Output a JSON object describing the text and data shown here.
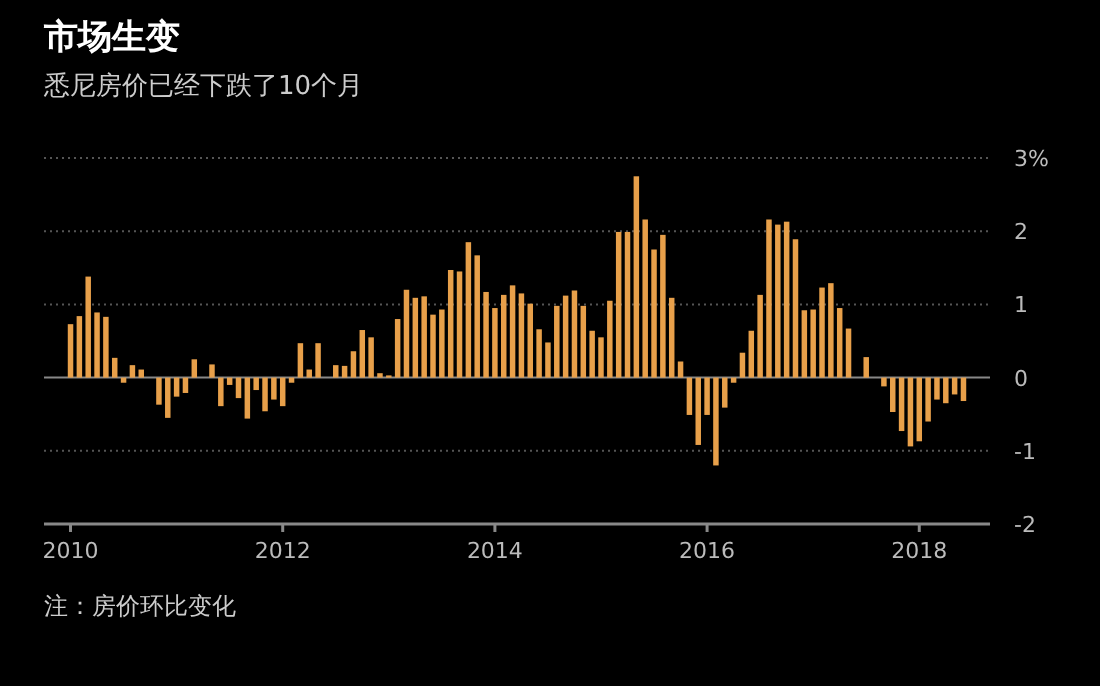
{
  "chart_data": {
    "type": "bar",
    "title": "市场生变",
    "subtitle": "悉尼房价已经下跌了10个月",
    "annotations": [
      "注：房价环比变化"
    ],
    "x": [
      "2010-01",
      "2010-02",
      "2010-03",
      "2010-04",
      "2010-05",
      "2010-06",
      "2010-07",
      "2010-08",
      "2010-09",
      "2010-10",
      "2010-11",
      "2010-12",
      "2011-01",
      "2011-02",
      "2011-03",
      "2011-04",
      "2011-05",
      "2011-06",
      "2011-07",
      "2011-08",
      "2011-09",
      "2011-10",
      "2011-11",
      "2011-12",
      "2012-01",
      "2012-02",
      "2012-03",
      "2012-04",
      "2012-05",
      "2012-06",
      "2012-07",
      "2012-08",
      "2012-09",
      "2012-10",
      "2012-11",
      "2012-12",
      "2013-01",
      "2013-02",
      "2013-03",
      "2013-04",
      "2013-05",
      "2013-06",
      "2013-07",
      "2013-08",
      "2013-09",
      "2013-10",
      "2013-11",
      "2013-12",
      "2014-01",
      "2014-02",
      "2014-03",
      "2014-04",
      "2014-05",
      "2014-06",
      "2014-07",
      "2014-08",
      "2014-09",
      "2014-10",
      "2014-11",
      "2014-12",
      "2015-01",
      "2015-02",
      "2015-03",
      "2015-04",
      "2015-05",
      "2015-06",
      "2015-07",
      "2015-08",
      "2015-09",
      "2015-10",
      "2015-11",
      "2015-12",
      "2016-01",
      "2016-02",
      "2016-03",
      "2016-04",
      "2016-05",
      "2016-06",
      "2016-07",
      "2016-08",
      "2016-09",
      "2016-10",
      "2016-11",
      "2016-12",
      "2017-01",
      "2017-02",
      "2017-03",
      "2017-04",
      "2017-05",
      "2017-06",
      "2017-07",
      "2017-08",
      "2017-09",
      "2017-10",
      "2017-11",
      "2017-12",
      "2018-01",
      "2018-02",
      "2018-03",
      "2018-04",
      "2018-05",
      "2018-06"
    ],
    "values": [
      0.73,
      0.84,
      1.38,
      0.89,
      0.83,
      0.27,
      -0.07,
      0.17,
      0.11,
      0.0,
      -0.37,
      -0.55,
      -0.26,
      -0.21,
      0.25,
      0.0,
      0.18,
      -0.39,
      -0.1,
      -0.28,
      -0.56,
      -0.17,
      -0.46,
      -0.3,
      -0.39,
      -0.07,
      0.47,
      0.11,
      0.47,
      0.0,
      0.17,
      0.16,
      0.36,
      0.65,
      0.55,
      0.06,
      0.03,
      0.8,
      1.2,
      1.09,
      1.11,
      0.86,
      0.93,
      1.47,
      1.45,
      1.85,
      1.67,
      1.17,
      0.95,
      1.13,
      1.26,
      1.15,
      1.01,
      0.66,
      0.48,
      0.98,
      1.12,
      1.19,
      0.98,
      0.64,
      0.55,
      1.05,
      1.99,
      1.99,
      2.75,
      2.16,
      1.75,
      1.95,
      1.09,
      0.22,
      -0.51,
      -0.92,
      -0.51,
      -1.2,
      -0.41,
      -0.07,
      0.34,
      0.64,
      1.13,
      2.16,
      2.09,
      2.13,
      1.89,
      0.92,
      0.93,
      1.23,
      1.29,
      0.95,
      0.67,
      0.0,
      0.28,
      0.0,
      -0.12,
      -0.47,
      -0.73,
      -0.94,
      -0.87,
      -0.6,
      -0.3,
      -0.35,
      -0.23,
      -0.32
    ],
    "color": "#e8a04a",
    "xlim": [
      "2009-10",
      "2018-09"
    ],
    "xticks": [
      "2010",
      "2012",
      "2014",
      "2016",
      "2018"
    ],
    "ylim": [
      -2,
      3
    ],
    "yticks": [
      -2,
      -1,
      0,
      1,
      2,
      {
        "value": 3,
        "label": "3%"
      }
    ],
    "grid": "y"
  }
}
